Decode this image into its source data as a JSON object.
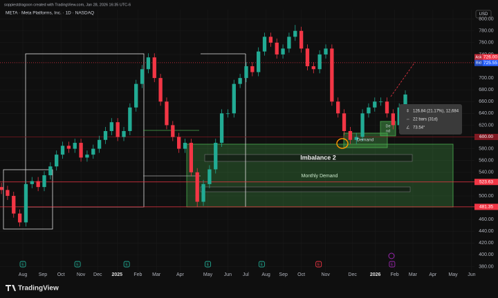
{
  "header": {
    "credit": "soppiestdragoon created with TradingView.com, Jan 28, 2026 16:35 UTC-6",
    "symbol": "META · Meta Platforms, Inc. · 1D · NASDAQ",
    "currency": "USD",
    "brand": "TradingView"
  },
  "chart_data": {
    "type": "candlestick",
    "x": [
      -0.05,
      0.25,
      0.55,
      0.85,
      1.15,
      1.45,
      1.75,
      2.05,
      2.35,
      2.65,
      2.95,
      3.25,
      3.55,
      3.85,
      4.15,
      4.45,
      4.75,
      5.05,
      5.35,
      5.65,
      5.95,
      6.25,
      6.55,
      6.85,
      7.15,
      7.45,
      7.75,
      8.05,
      8.35,
      8.65,
      8.95,
      9.25,
      9.55,
      9.85,
      10.15,
      10.45,
      10.75,
      11.05,
      11.35,
      11.65,
      11.95,
      12.25,
      12.55,
      12.85,
      13.15,
      13.45,
      13.75,
      14.05,
      14.35,
      14.65,
      14.95,
      15.25,
      15.55,
      15.85,
      16.15,
      16.45,
      16.75,
      17.05,
      17.35,
      17.65,
      17.95,
      18.25,
      18.55,
      18.85,
      19.15,
      19.45,
      19.75
    ],
    "open": [
      515,
      510,
      500,
      470,
      455,
      520,
      525,
      515,
      535,
      550,
      570,
      585,
      580,
      590,
      565,
      570,
      580,
      595,
      610,
      625,
      600,
      610,
      650,
      690,
      715,
      735,
      700,
      660,
      620,
      600,
      580,
      590,
      540,
      490,
      520,
      545,
      590,
      640,
      640,
      690,
      700,
      720,
      710,
      745,
      770,
      760,
      740,
      750,
      770,
      780,
      750,
      720,
      715,
      740,
      750,
      660,
      640,
      610,
      595,
      600,
      640,
      650,
      660,
      660,
      640,
      620,
      650
    ],
    "high": [
      522,
      517,
      507,
      477,
      527,
      532,
      532,
      542,
      557,
      577,
      592,
      592,
      597,
      597,
      577,
      587,
      602,
      617,
      632,
      632,
      617,
      657,
      697,
      722,
      742,
      742,
      707,
      667,
      627,
      607,
      597,
      597,
      547,
      527,
      552,
      597,
      647,
      647,
      697,
      707,
      727,
      727,
      752,
      777,
      777,
      767,
      757,
      777,
      790,
      787,
      757,
      727,
      747,
      757,
      757,
      667,
      647,
      617,
      607,
      647,
      657,
      667,
      667,
      667,
      647,
      657,
      679
    ],
    "low": [
      503,
      493,
      463,
      448,
      448,
      513,
      508,
      508,
      528,
      543,
      563,
      573,
      573,
      558,
      558,
      563,
      573,
      588,
      603,
      593,
      593,
      603,
      643,
      683,
      708,
      693,
      653,
      613,
      593,
      573,
      573,
      533,
      481,
      483,
      513,
      538,
      583,
      633,
      633,
      683,
      693,
      703,
      703,
      738,
      753,
      733,
      733,
      743,
      763,
      743,
      713,
      708,
      708,
      733,
      653,
      633,
      603,
      588,
      588,
      593,
      633,
      643,
      653,
      633,
      613,
      613,
      643
    ],
    "close": [
      510,
      500,
      470,
      455,
      520,
      525,
      515,
      535,
      550,
      570,
      585,
      580,
      590,
      565,
      570,
      580,
      595,
      610,
      625,
      600,
      610,
      650,
      690,
      715,
      735,
      700,
      660,
      620,
      600,
      580,
      590,
      540,
      490,
      520,
      545,
      590,
      640,
      640,
      690,
      700,
      720,
      710,
      745,
      770,
      760,
      740,
      750,
      770,
      780,
      750,
      720,
      715,
      740,
      750,
      660,
      640,
      610,
      595,
      600,
      640,
      650,
      660,
      660,
      640,
      620,
      650,
      672
    ],
    "up_color": "#22ab94",
    "down_color": "#f23645",
    "xlim": [
      -0.12,
      23.14
    ],
    "xticks": [
      {
        "value": 1.0,
        "label": "Aug"
      },
      {
        "value": 1.98,
        "label": "Sep"
      },
      {
        "value": 2.87,
        "label": "Oct"
      },
      {
        "value": 3.85,
        "label": "Nov"
      },
      {
        "value": 4.67,
        "label": "Dec"
      },
      {
        "value": 5.62,
        "label": "2025"
      },
      {
        "value": 6.64,
        "label": "Feb"
      },
      {
        "value": 7.55,
        "label": "Mar"
      },
      {
        "value": 8.71,
        "label": "Apr"
      },
      {
        "value": 10.07,
        "label": "May"
      },
      {
        "value": 11.05,
        "label": "Jun"
      },
      {
        "value": 11.93,
        "label": "Jul"
      },
      {
        "value": 12.92,
        "label": "Aug"
      },
      {
        "value": 13.77,
        "label": "Sep"
      },
      {
        "value": 14.65,
        "label": "Oct"
      },
      {
        "value": 15.84,
        "label": "Nov"
      },
      {
        "value": 17.16,
        "label": "Dec"
      },
      {
        "value": 18.28,
        "label": "2026"
      },
      {
        "value": 19.23,
        "label": "Feb"
      },
      {
        "value": 20.12,
        "label": "Mar"
      },
      {
        "value": 21.1,
        "label": "Apr"
      },
      {
        "value": 22.09,
        "label": "May"
      },
      {
        "value": 23.0,
        "label": "Jun"
      }
    ],
    "ylim": [
      370,
      816
    ],
    "yticks": [
      {
        "value": 380,
        "label": "380.00"
      },
      {
        "value": 400,
        "label": "400.00"
      },
      {
        "value": 420,
        "label": "420.00"
      },
      {
        "value": 440,
        "label": "440.00"
      },
      {
        "value": 460,
        "label": "460.00"
      },
      {
        "value": 500,
        "label": "500.00"
      },
      {
        "value": 540,
        "label": "540.00"
      },
      {
        "value": 560,
        "label": "560.00"
      },
      {
        "value": 580,
        "label": "580.00"
      },
      {
        "value": 620,
        "label": "620.00"
      },
      {
        "value": 640,
        "label": "640.00"
      },
      {
        "value": 660,
        "label": "660.00"
      },
      {
        "value": 680,
        "label": "680.00"
      },
      {
        "value": 700,
        "label": "700.00"
      },
      {
        "value": 740,
        "label": "740.00"
      },
      {
        "value": 760,
        "label": "760.00"
      },
      {
        "value": 780,
        "label": "780.00"
      },
      {
        "value": 800,
        "label": "800.00"
      }
    ],
    "grid": true,
    "price_lines": [
      {
        "name": "Ask",
        "value": 726,
        "label": "726.00",
        "color": "#f23645"
      },
      {
        "name": "Bid",
        "value": 725.55,
        "label": "725.55",
        "color": "#2962ff"
      },
      {
        "value": 600,
        "label": "600.00",
        "color": "#801922"
      },
      {
        "value": 523.63,
        "label": "523.63",
        "color": "#f23645"
      },
      {
        "value": 481.35,
        "label": "481.35",
        "color": "#f23645"
      }
    ],
    "annotations": {
      "imbalance": "Imbalance 2",
      "monthly_demand": "Monthly Demand",
      "demand": "Demand",
      "demand_small": [
        "De",
        "nd"
      ]
    },
    "measure": [
      "126.84 (21.17%), 12,684",
      "22 bars (31d)",
      "73.54°"
    ],
    "events": [
      {
        "x": 1.0,
        "label": "E",
        "color": "#22ab94"
      },
      {
        "x": 3.68,
        "label": "E",
        "color": "#22ab94"
      },
      {
        "x": 6.09,
        "label": "E",
        "color": "#22ab94"
      },
      {
        "x": 10.07,
        "label": "E",
        "color": "#22ab94"
      },
      {
        "x": 12.71,
        "label": "E",
        "color": "#22ab94"
      },
      {
        "x": 15.5,
        "label": "E",
        "color": "#f23645"
      },
      {
        "x": 19.1,
        "label": "E",
        "color": "#9c27b0"
      }
    ]
  }
}
